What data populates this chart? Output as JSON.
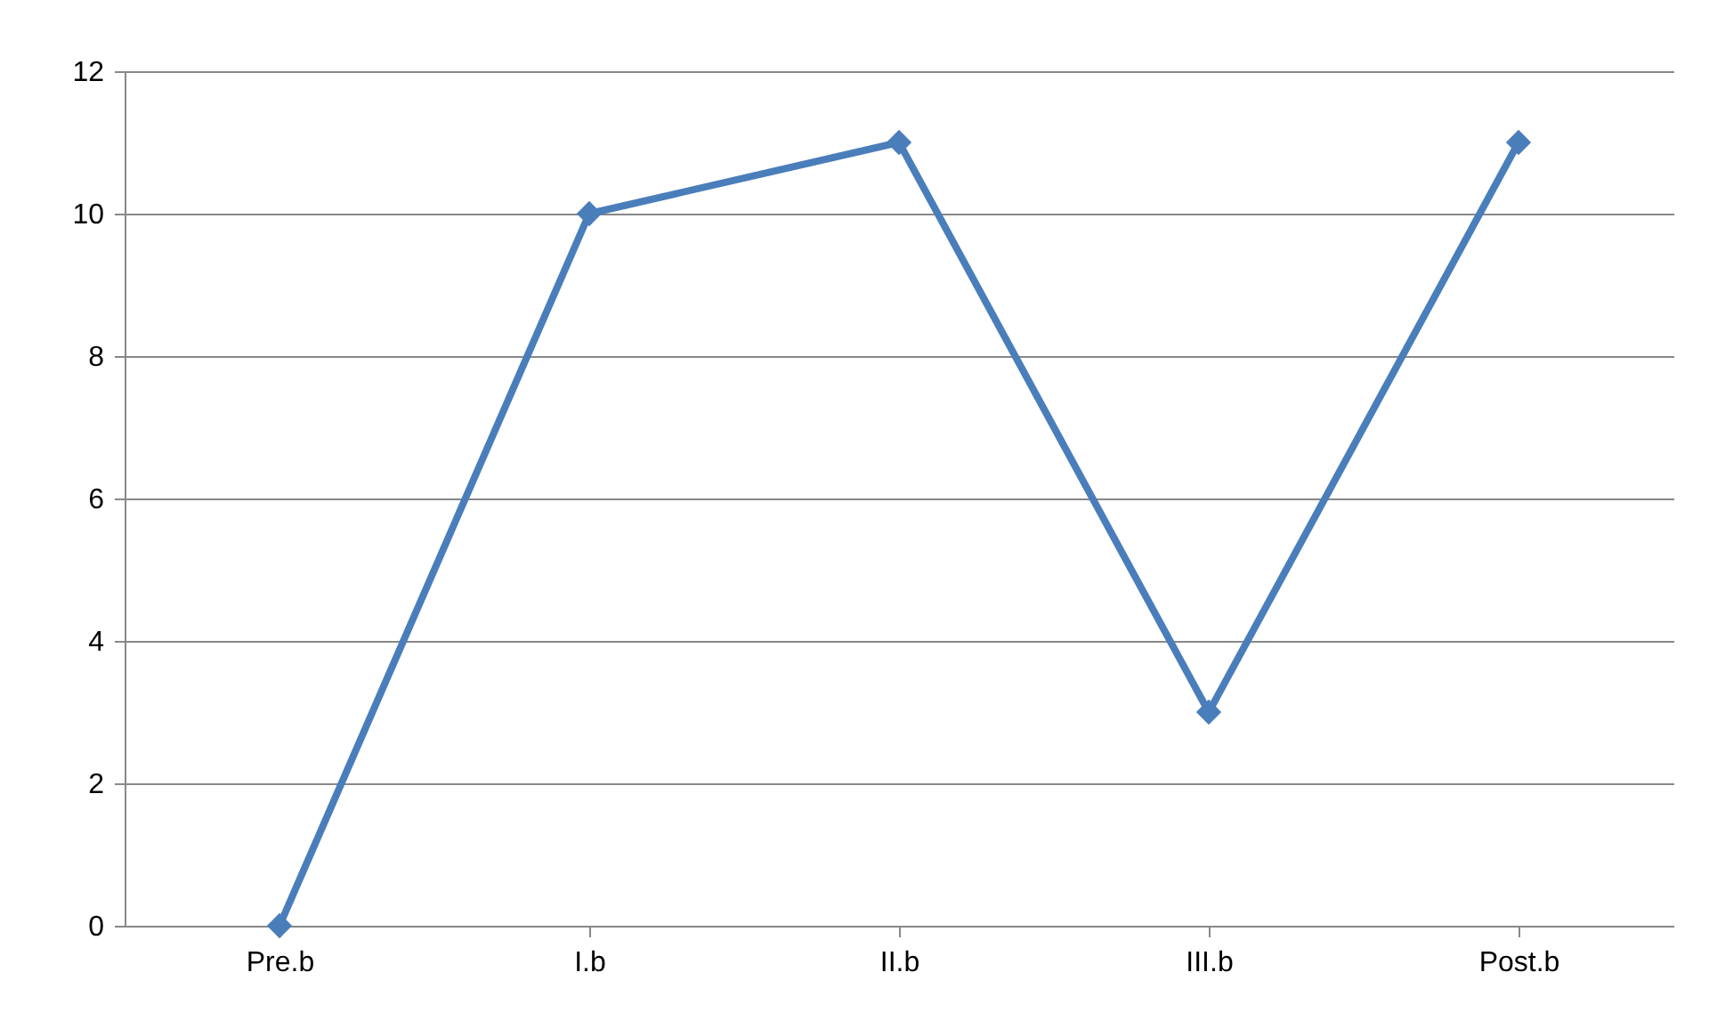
{
  "chart_data": {
    "type": "line",
    "categories": [
      "Pre.b",
      "I.b",
      "II.b",
      "III.b",
      "Post.b"
    ],
    "series": [
      {
        "color": "#4a7ebb",
        "values": [
          0,
          10,
          11,
          3,
          11
        ]
      }
    ],
    "ylim": [
      0,
      12
    ],
    "yticks": [
      0,
      2,
      4,
      6,
      8,
      10,
      12
    ],
    "grid": "y",
    "legend": false,
    "marker": "diamond",
    "line_style": "solid"
  }
}
